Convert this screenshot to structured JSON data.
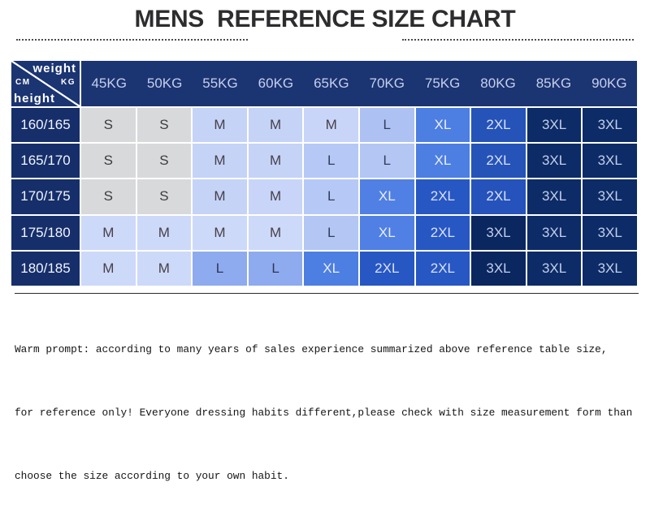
{
  "title": "MENS  REFERENCE SIZE CHART",
  "colors": {
    "navy": "#1b3472",
    "row-navy": "#162f6b",
    "kg-text": "#c6cfec",
    "rowhead-text": "#f2f4fb",
    "title-text": "#2d2d2f",
    "dots": "#4c4c4c",
    "footer-text": "#141414",
    "grid-gap": "#ffffff"
  },
  "table": {
    "corner": {
      "weight": "weight",
      "cm": "CM",
      "kg": "KG",
      "height": "height"
    },
    "weight_headers": [
      "45KG",
      "50KG",
      "55KG",
      "60KG",
      "65KG",
      "70KG",
      "75KG",
      "80KG",
      "85KG",
      "90KG"
    ],
    "rows": [
      {
        "height": "160/165",
        "cells": [
          {
            "label": "S",
            "bg": "#d8d9db",
            "fg": "#3c3c3e"
          },
          {
            "label": "S",
            "bg": "#d8d9db",
            "fg": "#3c3c3e"
          },
          {
            "label": "M",
            "bg": "#c5d3f7",
            "fg": "#474049"
          },
          {
            "label": "M",
            "bg": "#c5d3f7",
            "fg": "#474049"
          },
          {
            "label": "M",
            "bg": "#c8d5f8",
            "fg": "#474049"
          },
          {
            "label": "L",
            "bg": "#adc2f3",
            "fg": "#333e5c"
          },
          {
            "label": "XL",
            "bg": "#4d7ee2",
            "fg": "#e9eefb"
          },
          {
            "label": "2XL",
            "bg": "#2553b8",
            "fg": "#d9e1f5"
          },
          {
            "label": "3XL",
            "bg": "#0d2b67",
            "fg": "#c3cfe9"
          },
          {
            "label": "3XL",
            "bg": "#0d2b67",
            "fg": "#c3cfe9"
          }
        ]
      },
      {
        "height": "165/170",
        "cells": [
          {
            "label": "S",
            "bg": "#d8d9db",
            "fg": "#3c3c3e"
          },
          {
            "label": "S",
            "bg": "#d8d9db",
            "fg": "#3c3c3e"
          },
          {
            "label": "M",
            "bg": "#c5d3f7",
            "fg": "#474049"
          },
          {
            "label": "M",
            "bg": "#c5d3f7",
            "fg": "#474049"
          },
          {
            "label": "L",
            "bg": "#b6c8f5",
            "fg": "#333e5c"
          },
          {
            "label": "L",
            "bg": "#b3c6f4",
            "fg": "#333e5c"
          },
          {
            "label": "XL",
            "bg": "#4d7ee2",
            "fg": "#e9eefb"
          },
          {
            "label": "2XL",
            "bg": "#2553b8",
            "fg": "#d9e1f5"
          },
          {
            "label": "3XL",
            "bg": "#0d2b67",
            "fg": "#c3cfe9"
          },
          {
            "label": "3XL",
            "bg": "#0d2b67",
            "fg": "#c3cfe9"
          }
        ]
      },
      {
        "height": "170/175",
        "cells": [
          {
            "label": "S",
            "bg": "#d8d9db",
            "fg": "#3c3c3e"
          },
          {
            "label": "S",
            "bg": "#d8d9db",
            "fg": "#3c3c3e"
          },
          {
            "label": "M",
            "bg": "#c5d3f7",
            "fg": "#474049"
          },
          {
            "label": "M",
            "bg": "#c8d5f8",
            "fg": "#474049"
          },
          {
            "label": "L",
            "bg": "#b6c8f5",
            "fg": "#333e5c"
          },
          {
            "label": "XL",
            "bg": "#5080e3",
            "fg": "#e9eefb"
          },
          {
            "label": "2XL",
            "bg": "#2757c3",
            "fg": "#d9e1f5"
          },
          {
            "label": "2XL",
            "bg": "#2553bb",
            "fg": "#d9e1f5"
          },
          {
            "label": "3XL",
            "bg": "#0d2b67",
            "fg": "#c3cfe9"
          },
          {
            "label": "3XL",
            "bg": "#0d2b67",
            "fg": "#c3cfe9"
          }
        ]
      },
      {
        "height": "175/180",
        "cells": [
          {
            "label": "M",
            "bg": "#cdd9f8",
            "fg": "#474049"
          },
          {
            "label": "M",
            "bg": "#cdd9f8",
            "fg": "#474049"
          },
          {
            "label": "M",
            "bg": "#cdd9f8",
            "fg": "#474049"
          },
          {
            "label": "M",
            "bg": "#cdd9f8",
            "fg": "#474049"
          },
          {
            "label": "L",
            "bg": "#b3c6f4",
            "fg": "#333e5c"
          },
          {
            "label": "XL",
            "bg": "#5080e3",
            "fg": "#e9eefb"
          },
          {
            "label": "2XL",
            "bg": "#2757c3",
            "fg": "#d9e1f5"
          },
          {
            "label": "3XL",
            "bg": "#0b2760",
            "fg": "#c3cfe9"
          },
          {
            "label": "3XL",
            "bg": "#0d2b67",
            "fg": "#c3cfe9"
          },
          {
            "label": "3XL",
            "bg": "#0d2b67",
            "fg": "#c3cfe9"
          }
        ]
      },
      {
        "height": "180/185",
        "cells": [
          {
            "label": "M",
            "bg": "#cdd9f8",
            "fg": "#474049"
          },
          {
            "label": "M",
            "bg": "#cdd9f8",
            "fg": "#474049"
          },
          {
            "label": "L",
            "bg": "#8fabef",
            "fg": "#2c3756"
          },
          {
            "label": "L",
            "bg": "#8fabef",
            "fg": "#2c3756"
          },
          {
            "label": "XL",
            "bg": "#4d7ee2",
            "fg": "#e9eefb"
          },
          {
            "label": "2XL",
            "bg": "#2757c3",
            "fg": "#d9e1f5"
          },
          {
            "label": "2XL",
            "bg": "#2757c3",
            "fg": "#d9e1f5"
          },
          {
            "label": "3XL",
            "bg": "#0b2760",
            "fg": "#c3cfe9"
          },
          {
            "label": "3XL",
            "bg": "#0d2b67",
            "fg": "#c3cfe9"
          },
          {
            "label": "3XL",
            "bg": "#0d2b67",
            "fg": "#c3cfe9"
          }
        ]
      }
    ]
  },
  "chart_data": {
    "type": "table",
    "title": "MENS REFERENCE SIZE CHART",
    "columns": [
      "height(CM)\\weight(KG)",
      "45KG",
      "50KG",
      "55KG",
      "60KG",
      "65KG",
      "70KG",
      "75KG",
      "80KG",
      "85KG",
      "90KG"
    ],
    "rows": [
      [
        "160/165",
        "S",
        "S",
        "M",
        "M",
        "M",
        "L",
        "XL",
        "2XL",
        "3XL",
        "3XL"
      ],
      [
        "165/170",
        "S",
        "S",
        "M",
        "M",
        "L",
        "L",
        "XL",
        "2XL",
        "3XL",
        "3XL"
      ],
      [
        "170/175",
        "S",
        "S",
        "M",
        "M",
        "L",
        "XL",
        "2XL",
        "2XL",
        "3XL",
        "3XL"
      ],
      [
        "175/180",
        "M",
        "M",
        "M",
        "M",
        "L",
        "XL",
        "2XL",
        "3XL",
        "3XL",
        "3XL"
      ],
      [
        "180/185",
        "M",
        "M",
        "L",
        "L",
        "XL",
        "2XL",
        "2XL",
        "3XL",
        "3XL",
        "3XL"
      ]
    ]
  },
  "footer": {
    "lines": [
      "Warm prompt: according to many years of sales experience summarized above reference table size,",
      "for reference only! Everyone dressing habits different,please check with size measurement form than",
      "choose the size according to your own habit."
    ]
  }
}
